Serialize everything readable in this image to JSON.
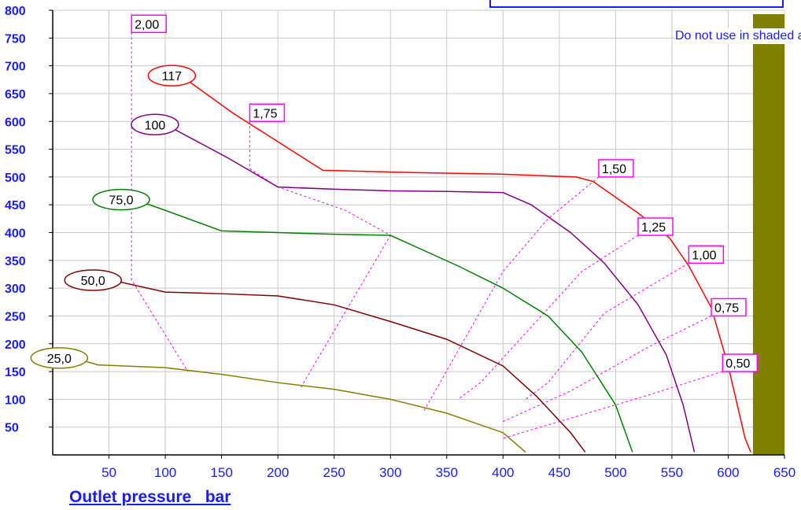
{
  "chart_data": {
    "type": "line",
    "title": "",
    "xlabel": "Outlet pressure   bar",
    "ylabel": "",
    "xlim": [
      0,
      650
    ],
    "ylim": [
      0,
      800
    ],
    "x_ticks": [
      50,
      100,
      150,
      200,
      250,
      300,
      350,
      400,
      450,
      500,
      550,
      600,
      650
    ],
    "y_ticks": [
      50,
      100,
      150,
      200,
      250,
      300,
      350,
      400,
      450,
      500,
      550,
      600,
      650,
      700,
      750,
      800
    ],
    "grid": true,
    "series": [
      {
        "name": "117",
        "color": "#ff0000",
        "points": [
          [
            110,
            688
          ],
          [
            160,
            615
          ],
          [
            240,
            512
          ],
          [
            320,
            508
          ],
          [
            400,
            505
          ],
          [
            465,
            500
          ],
          [
            480,
            492
          ],
          [
            520,
            435
          ],
          [
            548,
            390
          ],
          [
            565,
            340
          ],
          [
            585,
            265
          ],
          [
            600,
            160
          ],
          [
            615,
            30
          ],
          [
            620,
            5
          ]
        ]
      },
      {
        "name": "100",
        "color": "#800080",
        "points": [
          [
            95,
            600
          ],
          [
            155,
            535
          ],
          [
            200,
            482
          ],
          [
            250,
            478
          ],
          [
            300,
            475
          ],
          [
            350,
            474
          ],
          [
            400,
            472
          ],
          [
            425,
            450
          ],
          [
            460,
            400
          ],
          [
            490,
            345
          ],
          [
            520,
            270
          ],
          [
            545,
            180
          ],
          [
            560,
            90
          ],
          [
            570,
            5
          ]
        ]
      },
      {
        "name": "75,0",
        "color": "#008000",
        "points": [
          [
            65,
            465
          ],
          [
            100,
            440
          ],
          [
            150,
            403
          ],
          [
            200,
            400
          ],
          [
            250,
            397
          ],
          [
            300,
            395
          ],
          [
            360,
            340
          ],
          [
            400,
            300
          ],
          [
            440,
            250
          ],
          [
            470,
            185
          ],
          [
            500,
            90
          ],
          [
            515,
            5
          ]
        ]
      },
      {
        "name": "50,0",
        "color": "#800000",
        "points": [
          [
            40,
            320
          ],
          [
            100,
            293
          ],
          [
            150,
            290
          ],
          [
            200,
            286
          ],
          [
            250,
            270
          ],
          [
            300,
            240
          ],
          [
            350,
            208
          ],
          [
            400,
            160
          ],
          [
            430,
            105
          ],
          [
            460,
            40
          ],
          [
            473,
            5
          ]
        ]
      },
      {
        "name": "25,0",
        "color": "#808000",
        "points": [
          [
            10,
            180
          ],
          [
            40,
            162
          ],
          [
            100,
            157
          ],
          [
            150,
            145
          ],
          [
            200,
            130
          ],
          [
            250,
            118
          ],
          [
            300,
            100
          ],
          [
            350,
            75
          ],
          [
            400,
            40
          ],
          [
            420,
            5
          ]
        ]
      }
    ],
    "efficiency_lines": [
      {
        "label": "2,00",
        "points": [
          [
            70,
            760
          ],
          [
            70,
            315
          ],
          [
            120,
            150
          ]
        ]
      },
      {
        "label": "1,75",
        "points": [
          [
            175,
            600
          ],
          [
            175,
            515
          ],
          [
            200,
            482
          ],
          [
            260,
            440
          ],
          [
            300,
            395
          ],
          [
            220,
            120
          ]
        ]
      },
      {
        "label": "1,50",
        "points": [
          [
            485,
            500
          ],
          [
            440,
            425
          ],
          [
            400,
            330
          ],
          [
            330,
            80
          ]
        ]
      },
      {
        "label": "1,25",
        "points": [
          [
            520,
            395
          ],
          [
            470,
            330
          ],
          [
            380,
            130
          ],
          [
            360,
            100
          ]
        ]
      },
      {
        "label": "1,00",
        "points": [
          [
            565,
            345
          ],
          [
            490,
            255
          ],
          [
            440,
            130
          ],
          [
            420,
            100
          ]
        ]
      },
      {
        "label": "0,75",
        "points": [
          [
            585,
            250
          ],
          [
            530,
            195
          ],
          [
            460,
            115
          ],
          [
            400,
            60
          ]
        ]
      },
      {
        "label": "0,50",
        "points": [
          [
            595,
            150
          ],
          [
            525,
            105
          ],
          [
            450,
            60
          ],
          [
            400,
            30
          ]
        ]
      }
    ],
    "shaded_area": {
      "x_from": 622,
      "x_to": 650,
      "note": "Do not use in shaded area.",
      "color": "#808000"
    }
  }
}
